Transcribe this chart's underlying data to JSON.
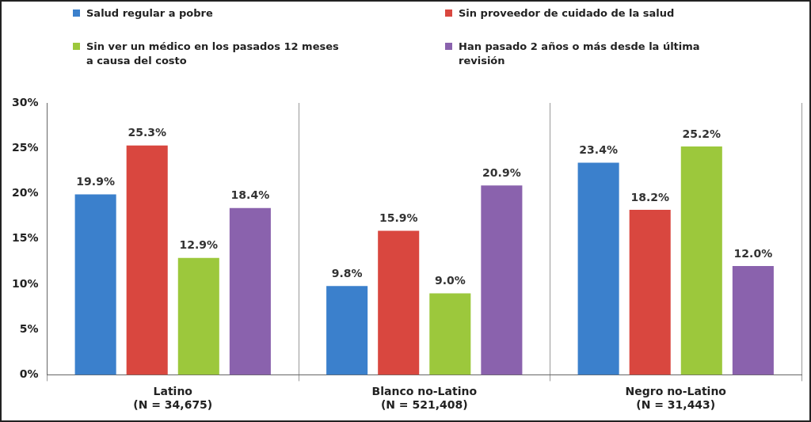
{
  "chart_data": {
    "type": "bar",
    "categories": [
      "Latino\n(N = 34,675)",
      "Blanco no-Latino\n(N = 521,408)",
      "Negro no-Latino\n(N = 31,443)"
    ],
    "series": [
      {
        "name": "Salud regular a pobre",
        "color": "#3b80cc",
        "values": [
          19.9,
          9.8,
          23.4
        ]
      },
      {
        "name": "Sin proveedor de cuidado de la salud",
        "color": "#d9473f",
        "values": [
          25.3,
          15.9,
          18.2
        ]
      },
      {
        "name": "Sin ver un médico en los pasados 12 meses a causa del costo",
        "color": "#9cc83c",
        "values": [
          12.9,
          9.0,
          25.2
        ]
      },
      {
        "name": "Han pasado 2 años o más desde la última revisión",
        "color": "#8a62ad",
        "values": [
          18.4,
          20.9,
          12.0
        ]
      }
    ],
    "value_labels": [
      [
        "19.9%",
        "9.8%",
        "23.4%"
      ],
      [
        "25.3%",
        "15.9%",
        "18.2%"
      ],
      [
        "12.9%",
        "9.0%",
        "25.2%"
      ],
      [
        "18.4%",
        "20.9%",
        "12.0%"
      ]
    ],
    "ylim": [
      0,
      30
    ],
    "yticks": [
      {
        "value": 0,
        "label": "0%"
      },
      {
        "value": 5,
        "label": "5%"
      },
      {
        "value": 10,
        "label": "10%"
      },
      {
        "value": 15,
        "label": "15%"
      },
      {
        "value": 20,
        "label": "20%"
      },
      {
        "value": 25,
        "label": "25%"
      },
      {
        "value": 30,
        "label": "30%"
      }
    ],
    "grid": "x",
    "legend": "top"
  }
}
